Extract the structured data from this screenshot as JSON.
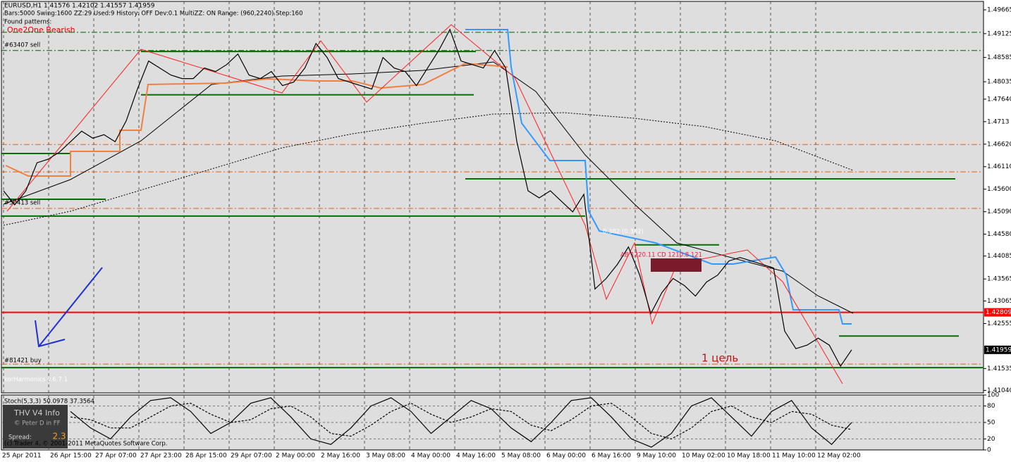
{
  "chart_data": [
    {
      "type": "line",
      "symbol_header": "EURUSD,H1  1.41576 1.42102 1.41557 1.41959",
      "settings_line": "Bars:5000  Swing:1600  ZZ:29  Used:9  History: OFF Dev:0.1  MultiZZ: ON  Range: (960,2240)  Step:160",
      "patterns_label": "Found patterns:",
      "pattern": "One2One Bearish",
      "annotations": [
        "#63407 sell",
        "#50413 sell",
        "#81421 buy",
        "korHarmonics v.6.7.1",
        "1 цель",
        "0.382 (0.382)",
        "AB 1220.11 CD 1210.8  121"
      ],
      "info_box": {
        "title": "THV  V4  Info",
        "author": "© Peter D in FF",
        "spread_label": "Spread:",
        "spread": 2.3
      },
      "copyright": "(c) Trader 4, © 2001-2011 MetaQuotes Software Corp.",
      "xtick_labels": [
        "25 Apr 2011",
        "26 Apr 15:00",
        "27 Apr 07:00",
        "27 Apr 23:00",
        "28 Apr 15:00",
        "29 Apr 07:00",
        "2 May 00:00",
        "2 May 16:00",
        "3 May 08:00",
        "4 May 00:00",
        "4 May 16:00",
        "5 May 08:00",
        "6 May 00:00",
        "6 May 16:00",
        "9 May 10:00",
        "10 May 02:00",
        "10 May 18:00",
        "11 May 10:00",
        "12 May 02:00"
      ],
      "color": "#000000",
      "values": [
        1.45563,
        1.45245,
        1.45563,
        1.46199,
        1.46279,
        1.46438,
        1.46676,
        1.46915,
        1.46756,
        1.46835,
        1.46676,
        1.47153,
        1.47869,
        1.48505,
        1.48346,
        1.48187,
        1.48107,
        1.48107,
        1.48346,
        1.48266,
        1.48425,
        1.48664,
        1.48187,
        1.48107,
        1.48266,
        1.47948,
        1.48027,
        1.48346,
        1.48902,
        1.48584,
        1.48107,
        1.48027,
        1.47948,
        1.47869,
        1.48584,
        1.48346,
        1.48266,
        1.47948,
        1.48346,
        1.48743,
        1.4922,
        1.48505,
        1.48425,
        1.48346,
        1.48743,
        1.48346,
        1.46676,
        1.45563,
        1.45404,
        1.45563,
        1.45325,
        1.45086,
        1.45484,
        1.43337,
        1.43576,
        1.43894,
        1.44291,
        1.43655,
        1.42781,
        1.43257,
        1.43576,
        1.43417,
        1.43178,
        1.43496,
        1.43655,
        1.43973,
        1.44052,
        1.43973,
        1.43894,
        1.43814,
        1.42383,
        1.41985,
        1.42065,
        1.42224,
        1.42065,
        1.41588,
        1.41959
      ],
      "ylim": [
        1.40983,
        1.49856
      ],
      "yticks": [
        1.49665,
        1.49125,
        1.48585,
        1.48035,
        {
          "value": 1.4764,
          "label": "1.47640"
        },
        1.4713,
        {
          "value": 1.4662,
          "label": "1.46620"
        },
        {
          "value": 1.4611,
          "label": "1.46110"
        },
        {
          "value": 1.456,
          "label": "1.45600"
        },
        {
          "value": 1.4509,
          "label": "1.45090"
        },
        {
          "value": 1.4458,
          "label": "1.44580"
        },
        1.44085,
        1.43565,
        1.43065,
        1.42555,
        1.41535,
        {
          "value": 1.4104,
          "label": "1.41040"
        }
      ],
      "price_labels": [
        1.42809,
        1.41959
      ],
      "green_levels": [
        1.4872,
        1.4774,
        1.46408,
        1.45834,
        1.45372,
        1.44991,
        1.44339,
        1.42272,
        1.41556
      ],
      "red_levels": [
        1.42809
      ],
      "dashed_levels": [
        1.49156,
        1.48743,
        1.46612,
        1.45992,
        1.45165,
        1.41636
      ]
    },
    {
      "type": "line",
      "title": "Stoch(5,3,3) 50.0978 37.3564",
      "ylim": [
        0,
        100
      ],
      "yticks": [
        0,
        20,
        50,
        80,
        100
      ],
      "series": [
        {
          "color": "#000000",
          "values": [
            70,
            40,
            20,
            60,
            90,
            95,
            70,
            30,
            50,
            85,
            95,
            60,
            20,
            10,
            40,
            80,
            95,
            70,
            30,
            60,
            90,
            75,
            40,
            15,
            50,
            90,
            95,
            60,
            20,
            5,
            30,
            80,
            95,
            60,
            25,
            70,
            90,
            40,
            10,
            50
          ]
        },
        {
          "color": "#000000",
          "values": [
            60,
            55,
            40,
            40,
            60,
            80,
            85,
            65,
            50,
            55,
            75,
            80,
            60,
            30,
            25,
            45,
            70,
            85,
            65,
            50,
            60,
            75,
            70,
            45,
            35,
            55,
            80,
            85,
            60,
            30,
            20,
            40,
            70,
            80,
            60,
            50,
            70,
            65,
            45,
            37
          ]
        }
      ]
    }
  ]
}
